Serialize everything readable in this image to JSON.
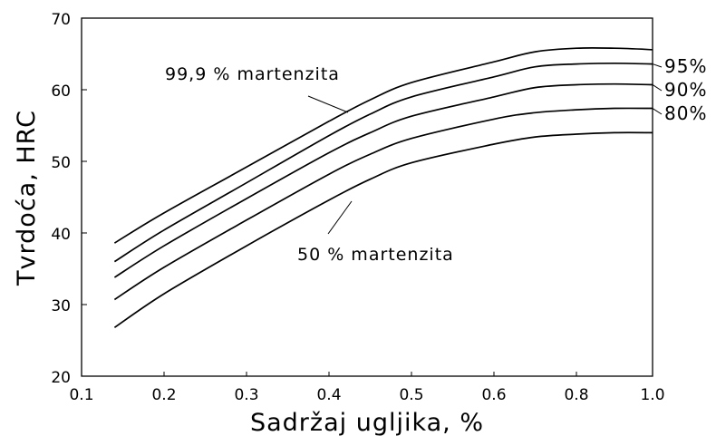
{
  "chart_data": {
    "type": "line",
    "xlabel": "Sadržaj ugljika,   %",
    "ylabel": "Tvrdoća,  HRC",
    "x_ticks": [
      "0.1",
      "0.2",
      "0.3",
      "0.4",
      "0.5",
      "0.6",
      "0.8",
      "1.0"
    ],
    "y_ticks": [
      "20",
      "30",
      "40",
      "50",
      "60",
      "70"
    ],
    "ylim": [
      20,
      70
    ],
    "grid": false,
    "series": [
      {
        "name": "99,9 % martenzita",
        "x": [
          0.14,
          0.2,
          0.3,
          0.4,
          0.45,
          0.5,
          0.6,
          0.7,
          0.8,
          0.9,
          1.0
        ],
        "y": [
          38.6,
          42.8,
          49.2,
          55.6,
          58.6,
          61.0,
          63.9,
          65.3,
          65.8,
          65.8,
          65.6
        ]
      },
      {
        "name": "95%",
        "x": [
          0.14,
          0.2,
          0.3,
          0.4,
          0.45,
          0.5,
          0.6,
          0.7,
          0.8,
          0.9,
          1.0
        ],
        "y": [
          36.0,
          40.4,
          47.0,
          53.6,
          56.6,
          59.0,
          61.8,
          63.2,
          63.6,
          63.7,
          63.6
        ]
      },
      {
        "name": "90%",
        "x": [
          0.14,
          0.2,
          0.3,
          0.4,
          0.45,
          0.5,
          0.6,
          0.7,
          0.8,
          0.9,
          1.0
        ],
        "y": [
          33.8,
          38.2,
          44.8,
          51.2,
          54.0,
          56.3,
          59.0,
          60.3,
          60.7,
          60.8,
          60.7
        ]
      },
      {
        "name": "80%",
        "x": [
          0.14,
          0.2,
          0.3,
          0.4,
          0.45,
          0.5,
          0.6,
          0.7,
          0.8,
          0.9,
          1.0
        ],
        "y": [
          30.7,
          35.2,
          41.8,
          48.2,
          51.0,
          53.2,
          55.9,
          56.8,
          57.2,
          57.4,
          57.4
        ]
      },
      {
        "name": "50 % martenzita",
        "x": [
          0.14,
          0.2,
          0.3,
          0.4,
          0.45,
          0.5,
          0.6,
          0.7,
          0.8,
          0.9,
          1.0
        ],
        "y": [
          26.8,
          31.5,
          38.2,
          44.6,
          47.5,
          49.8,
          52.4,
          53.4,
          53.8,
          54.0,
          54.0
        ]
      }
    ],
    "annotations": [
      "99,9 % martenzita",
      "50 % martenzita"
    ],
    "series_end_labels": [
      "95%",
      "90%",
      "80%"
    ]
  }
}
